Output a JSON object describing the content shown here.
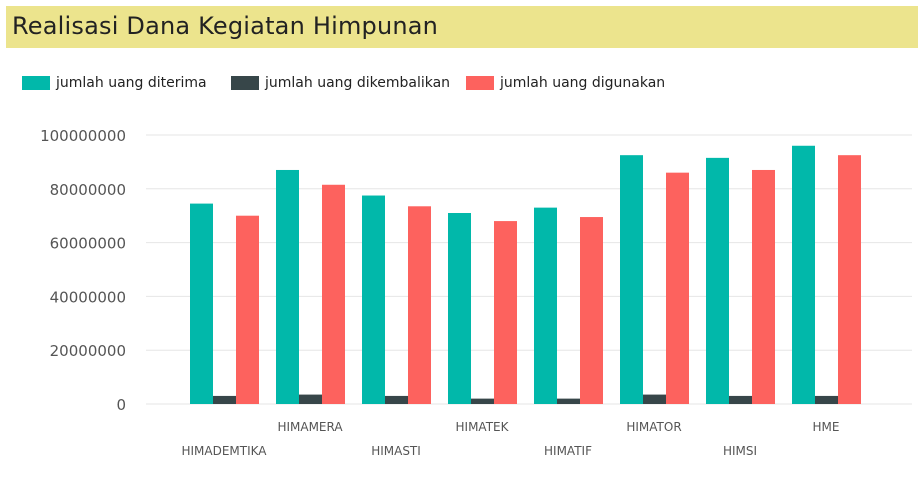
{
  "title": "Realisasi Dana Kegiatan Himpunan",
  "colors": {
    "title_bg": "#ece48d",
    "diterima": "#01b8aa",
    "dikembalikan": "#374649",
    "digunakan": "#fd625e",
    "axis_text": "#555555",
    "grid": "#e6e6e6"
  },
  "legend": {
    "diterima": "jumlah uang diterima",
    "dikembalikan": "jumlah uang dikembalikan",
    "digunakan": "jumlah uang digunakan"
  },
  "chart_data": {
    "type": "bar",
    "title": "Realisasi Dana Kegiatan Himpunan",
    "xlabel": "",
    "ylabel": "",
    "categories": [
      "HIMADEMTIKA",
      "HIMAMERA",
      "HIMASTI",
      "HIMATEK",
      "HIMATIF",
      "HIMATOR",
      "HIMSI",
      "HME"
    ],
    "series": [
      {
        "name": "jumlah uang diterima",
        "color": "#01b8aa",
        "values": [
          74500000,
          87000000,
          77500000,
          71000000,
          73000000,
          92500000,
          91500000,
          96000000
        ]
      },
      {
        "name": "jumlah uang dikembalikan",
        "color": "#374649",
        "values": [
          3000000,
          3500000,
          3000000,
          2000000,
          2000000,
          3500000,
          3000000,
          3000000
        ]
      },
      {
        "name": "jumlah uang digunakan",
        "color": "#fd625e",
        "values": [
          70000000,
          81500000,
          73500000,
          68000000,
          69500000,
          86000000,
          87000000,
          92500000
        ]
      }
    ],
    "ylim": [
      0,
      100000000
    ],
    "yticks": [
      0,
      20000000,
      40000000,
      60000000,
      80000000,
      100000000
    ],
    "ytick_labels": [
      "0",
      "20000000",
      "40000000",
      "60000000",
      "80000000",
      "100000000"
    ],
    "grid": true,
    "legend_position": "top-left"
  }
}
